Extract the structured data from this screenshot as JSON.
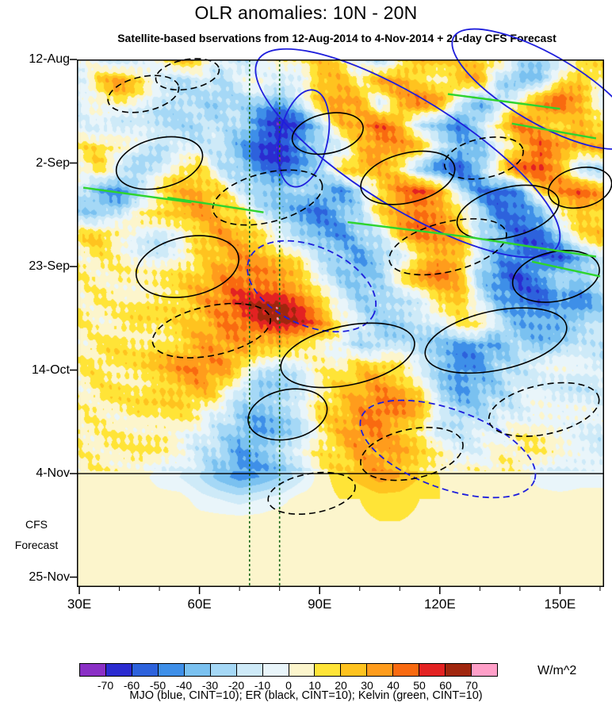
{
  "title": "OLR anomalies: 10N - 20N",
  "subtitle": "Satellite-based bservations from 12-Aug-2014 to 4-Nov-2014 + 21-day CFS Forecast",
  "units": "W/m^2",
  "legend": "MJO (blue, CINT=10); ER (black, CINT=10); Kelvin (green, CINT=10)",
  "forecast_label": {
    "line1": "CFS",
    "line2": "Forecast"
  },
  "axes": {
    "x": {
      "range": [
        29.4,
        161.0
      ],
      "minor_step": 10,
      "ticks": [
        {
          "lon": 30,
          "label": "30E"
        },
        {
          "lon": 60,
          "label": "60E"
        },
        {
          "lon": 90,
          "label": "90E"
        },
        {
          "lon": 120,
          "label": "120E"
        },
        {
          "lon": 150,
          "label": "150E"
        }
      ]
    },
    "y": {
      "range": [
        0,
        107
      ],
      "ticks": [
        {
          "day": 0,
          "label": "12-Aug"
        },
        {
          "day": 21,
          "label": "2-Sep"
        },
        {
          "day": 42,
          "label": "23-Sep"
        },
        {
          "day": 63,
          "label": "14-Oct"
        },
        {
          "day": 84,
          "label": "4-Nov"
        },
        {
          "day": 105,
          "label": "25-Nov"
        }
      ]
    }
  },
  "colorbar": {
    "levels": [
      -70,
      -60,
      -50,
      -40,
      -30,
      -20,
      -10,
      0,
      10,
      20,
      30,
      40,
      50,
      60,
      70
    ],
    "labels": [
      "-70",
      "-60",
      "-50",
      "-40",
      "-30",
      "-20",
      "-10",
      "0",
      "10",
      "20",
      "30",
      "40",
      "50",
      "60",
      "70"
    ],
    "colors": [
      "#8A2FC5",
      "#2B2BD0",
      "#2D62DC",
      "#3E8FE8",
      "#7AC1F0",
      "#A5D8F6",
      "#CEEAF8",
      "#E9F5FA",
      "#FCF5CC",
      "#FFE437",
      "#FFC31F",
      "#FF9C1C",
      "#F96A10",
      "#E32222",
      "#A0260E",
      "#FF9FC8"
    ]
  },
  "chart_data": {
    "type": "heatmap",
    "title": "OLR anomalies: 10N - 20N",
    "xlabel": "",
    "ylabel": "",
    "value_units": "W/m^2",
    "x_lons": [
      30,
      35,
      40,
      45,
      50,
      55,
      60,
      65,
      70,
      75,
      80,
      85,
      90,
      95,
      100,
      105,
      110,
      115,
      120,
      125,
      130,
      135,
      140,
      145,
      150,
      155,
      160
    ],
    "y_days": [
      0,
      4.46,
      8.92,
      13.38,
      17.83,
      22.29,
      26.75,
      31.21,
      35.67,
      40.13,
      44.58,
      49.04,
      53.5,
      57.96,
      62.42,
      66.88,
      71.33,
      75.79,
      80.25,
      84.71,
      89.17,
      93.63,
      98.08,
      102.54,
      107
    ],
    "values": [
      [
        -5,
        -10,
        -15,
        -10,
        5,
        25,
        15,
        -10,
        -15,
        -5,
        10,
        5,
        20,
        15,
        -10,
        -20,
        10,
        25,
        20,
        15,
        25,
        10,
        -15,
        -30,
        -20,
        5,
        15
      ],
      [
        -10,
        20,
        35,
        20,
        -10,
        -20,
        -15,
        -20,
        -10,
        0,
        -10,
        -5,
        30,
        25,
        10,
        30,
        35,
        20,
        10,
        30,
        25,
        -20,
        -40,
        -25,
        20,
        30,
        10
      ],
      [
        -15,
        5,
        10,
        -5,
        -20,
        -25,
        -20,
        -30,
        -20,
        -30,
        -45,
        -20,
        20,
        40,
        30,
        -10,
        25,
        40,
        30,
        -20,
        -35,
        -20,
        15,
        35,
        45,
        25,
        -10
      ],
      [
        -5,
        -15,
        -20,
        -10,
        -15,
        -20,
        -25,
        -15,
        -25,
        -50,
        -65,
        -55,
        -20,
        20,
        35,
        45,
        30,
        -15,
        -30,
        -45,
        -25,
        20,
        40,
        30,
        20,
        35,
        20
      ],
      [
        10,
        20,
        10,
        -10,
        -25,
        -15,
        -10,
        -20,
        -35,
        -60,
        -70,
        -45,
        -30,
        -10,
        20,
        40,
        35,
        25,
        -20,
        -40,
        -30,
        -10,
        25,
        45,
        30,
        20,
        30
      ],
      [
        5,
        15,
        -15,
        -25,
        -10,
        15,
        20,
        -15,
        -30,
        -45,
        -55,
        -40,
        -20,
        10,
        30,
        25,
        15,
        -25,
        -45,
        -55,
        -35,
        20,
        45,
        55,
        35,
        -15,
        -25
      ],
      [
        -20,
        -35,
        -45,
        -25,
        10,
        25,
        30,
        20,
        -10,
        -25,
        -35,
        -25,
        -35,
        -45,
        -25,
        20,
        40,
        50,
        30,
        -20,
        -45,
        -60,
        -40,
        15,
        35,
        45,
        30
      ],
      [
        -25,
        -30,
        -20,
        10,
        20,
        30,
        35,
        25,
        15,
        -15,
        -25,
        -40,
        -50,
        -35,
        -20,
        15,
        35,
        45,
        40,
        20,
        -25,
        -50,
        -55,
        -35,
        10,
        30,
        20
      ],
      [
        15,
        25,
        10,
        -10,
        -20,
        -10,
        20,
        35,
        30,
        20,
        -10,
        -30,
        -40,
        -45,
        -30,
        -15,
        25,
        40,
        35,
        25,
        -15,
        -35,
        -55,
        -60,
        -30,
        10,
        25
      ],
      [
        5,
        10,
        5,
        -5,
        -10,
        5,
        15,
        25,
        35,
        30,
        25,
        15,
        -15,
        -30,
        -40,
        -30,
        -15,
        20,
        35,
        30,
        -20,
        -40,
        -50,
        -45,
        -55,
        -30,
        -10
      ],
      [
        10,
        5,
        10,
        5,
        10,
        15,
        25,
        35,
        45,
        40,
        30,
        20,
        -10,
        -25,
        -35,
        -25,
        10,
        30,
        40,
        25,
        -25,
        -50,
        -60,
        -45,
        -25,
        -35,
        -20
      ],
      [
        5,
        10,
        5,
        10,
        15,
        20,
        30,
        40,
        50,
        60,
        65,
        50,
        30,
        -10,
        -25,
        -30,
        -20,
        -10,
        20,
        30,
        -15,
        -35,
        -50,
        -55,
        -35,
        -45,
        -30
      ],
      [
        10,
        5,
        10,
        15,
        10,
        15,
        25,
        35,
        45,
        55,
        60,
        55,
        35,
        15,
        -15,
        -25,
        -30,
        -20,
        -15,
        10,
        20,
        -20,
        -35,
        -40,
        -45,
        -30,
        -20
      ],
      [
        5,
        10,
        15,
        10,
        15,
        20,
        30,
        35,
        30,
        25,
        30,
        20,
        10,
        -10,
        -20,
        -25,
        -15,
        -20,
        -30,
        -40,
        -45,
        -35,
        -25,
        -30,
        -20,
        -10,
        -15
      ],
      [
        10,
        15,
        10,
        15,
        25,
        35,
        40,
        35,
        25,
        -10,
        -20,
        -15,
        5,
        10,
        20,
        25,
        15,
        -15,
        -35,
        -50,
        -40,
        -25,
        -15,
        -10,
        -5,
        -10,
        -15
      ],
      [
        5,
        10,
        15,
        10,
        20,
        25,
        30,
        20,
        -15,
        -30,
        -25,
        -15,
        10,
        20,
        30,
        35,
        30,
        20,
        -20,
        -40,
        -35,
        -25,
        -15,
        -5,
        -10,
        -15,
        -10
      ],
      [
        5,
        10,
        5,
        15,
        10,
        15,
        10,
        -10,
        -25,
        -35,
        -30,
        -15,
        15,
        25,
        35,
        45,
        40,
        25,
        -15,
        -30,
        -25,
        -15,
        -10,
        -5,
        -10,
        -5,
        -10
      ],
      [
        10,
        5,
        10,
        5,
        10,
        5,
        -10,
        -20,
        -35,
        -40,
        -30,
        -20,
        10,
        25,
        40,
        35,
        25,
        15,
        -10,
        -15,
        -10,
        -5,
        5,
        10,
        5,
        -5,
        -10
      ],
      [
        5,
        10,
        5,
        10,
        5,
        -5,
        -15,
        -25,
        -40,
        -35,
        -25,
        -10,
        10,
        20,
        30,
        35,
        30,
        15,
        5,
        -10,
        -5,
        5,
        10,
        5,
        -5,
        -10,
        -15
      ],
      [
        5,
        5,
        10,
        5,
        -5,
        -10,
        -20,
        -35,
        -45,
        -40,
        -30,
        -15,
        5,
        15,
        25,
        35,
        30,
        20,
        10,
        5,
        10,
        5,
        5,
        -5,
        -10,
        -5,
        -5
      ],
      [
        5,
        5,
        5,
        5,
        5,
        5,
        -5,
        -10,
        -15,
        -10,
        -5,
        5,
        5,
        10,
        10,
        15,
        15,
        10,
        10,
        5,
        5,
        5,
        5,
        5,
        5,
        5,
        5
      ],
      [
        8,
        8,
        8,
        8,
        8,
        8,
        5,
        5,
        5,
        5,
        8,
        8,
        8,
        8,
        8,
        10,
        10,
        8,
        8,
        8,
        8,
        8,
        8,
        8,
        8,
        8,
        8
      ],
      [
        8,
        8,
        8,
        8,
        8,
        8,
        8,
        8,
        8,
        8,
        8,
        8,
        8,
        8,
        8,
        8,
        8,
        8,
        8,
        8,
        8,
        8,
        8,
        8,
        8,
        8,
        8
      ],
      [
        8,
        8,
        8,
        8,
        8,
        8,
        8,
        8,
        8,
        8,
        8,
        8,
        8,
        8,
        8,
        8,
        8,
        8,
        8,
        8,
        8,
        8,
        8,
        8,
        8,
        8,
        8
      ],
      [
        8,
        8,
        8,
        8,
        8,
        8,
        8,
        8,
        8,
        8,
        8,
        8,
        8,
        8,
        8,
        8,
        8,
        8,
        8,
        8,
        8,
        8,
        8,
        8,
        8,
        8,
        8
      ]
    ],
    "overlays": {
      "contour_colors": {
        "mjo": "#1E1EDC",
        "er": "#000000",
        "kelvin": "#2ED42E"
      },
      "mjo_ellipses": [
        {
          "lon": 112,
          "day": 19,
          "rx_deg": 44,
          "ry_days": 11,
          "angle": 32,
          "style": "solid"
        },
        {
          "lon": 86,
          "day": 16,
          "rx_deg": 6,
          "ry_days": 10,
          "angle": 12,
          "style": "solid"
        },
        {
          "lon": 146,
          "day": 6,
          "rx_deg": 26,
          "ry_days": 7,
          "angle": 30,
          "style": "solid"
        },
        {
          "lon": 88,
          "day": 46,
          "rx_deg": 17,
          "ry_days": 8,
          "angle": 24,
          "style": "dashed"
        },
        {
          "lon": 122,
          "day": 79,
          "rx_deg": 23,
          "ry_days": 8,
          "angle": 20,
          "style": "dashed"
        }
      ],
      "er_ellipses": [
        {
          "lon": 46,
          "day": 7,
          "rx_deg": 9,
          "ry_days": 3.5,
          "angle": -12,
          "style": "dashed"
        },
        {
          "lon": 57,
          "day": 3,
          "rx_deg": 8,
          "ry_days": 3,
          "angle": -10,
          "style": "dashed"
        },
        {
          "lon": 50,
          "day": 21,
          "rx_deg": 11,
          "ry_days": 5,
          "angle": -14,
          "style": "solid"
        },
        {
          "lon": 92,
          "day": 15,
          "rx_deg": 9,
          "ry_days": 4,
          "angle": -12,
          "style": "solid"
        },
        {
          "lon": 77,
          "day": 28,
          "rx_deg": 14,
          "ry_days": 5,
          "angle": -14,
          "style": "dashed"
        },
        {
          "lon": 112,
          "day": 24,
          "rx_deg": 12,
          "ry_days": 5,
          "angle": -14,
          "style": "solid"
        },
        {
          "lon": 131,
          "day": 20,
          "rx_deg": 10,
          "ry_days": 4,
          "angle": -12,
          "style": "dashed"
        },
        {
          "lon": 137,
          "day": 31,
          "rx_deg": 13,
          "ry_days": 5,
          "angle": -14,
          "style": "solid"
        },
        {
          "lon": 122,
          "day": 38,
          "rx_deg": 15,
          "ry_days": 5,
          "angle": -14,
          "style": "dashed"
        },
        {
          "lon": 149,
          "day": 44,
          "rx_deg": 11,
          "ry_days": 5,
          "angle": -12,
          "style": "solid"
        },
        {
          "lon": 57,
          "day": 42,
          "rx_deg": 13,
          "ry_days": 6,
          "angle": -12,
          "style": "solid"
        },
        {
          "lon": 63,
          "day": 55,
          "rx_deg": 15,
          "ry_days": 5,
          "angle": -12,
          "style": "dashed"
        },
        {
          "lon": 97,
          "day": 60,
          "rx_deg": 17,
          "ry_days": 6,
          "angle": -12,
          "style": "solid"
        },
        {
          "lon": 134,
          "day": 57,
          "rx_deg": 18,
          "ry_days": 6,
          "angle": -12,
          "style": "solid"
        },
        {
          "lon": 146,
          "day": 71,
          "rx_deg": 14,
          "ry_days": 5,
          "angle": -12,
          "style": "dashed"
        },
        {
          "lon": 113,
          "day": 80,
          "rx_deg": 13,
          "ry_days": 5,
          "angle": -12,
          "style": "dashed"
        },
        {
          "lon": 88,
          "day": 88,
          "rx_deg": 11,
          "ry_days": 4,
          "angle": -10,
          "style": "dashed"
        },
        {
          "lon": 82,
          "day": 72,
          "rx_deg": 10,
          "ry_days": 5,
          "angle": -12,
          "style": "solid"
        },
        {
          "lon": 155,
          "day": 26,
          "rx_deg": 8,
          "ry_days": 4,
          "angle": -12,
          "style": "solid"
        }
      ],
      "kelvin_lines": [
        {
          "lon1": 31,
          "day1": 26,
          "lon2": 58,
          "day2": 29
        },
        {
          "lon1": 52,
          "day1": 28,
          "lon2": 76,
          "day2": 31
        },
        {
          "lon1": 122,
          "day1": 7,
          "lon2": 150,
          "day2": 10
        },
        {
          "lon1": 97,
          "day1": 33,
          "lon2": 127,
          "day2": 36
        },
        {
          "lon1": 127,
          "day1": 36,
          "lon2": 159,
          "day2": 40
        },
        {
          "lon1": 138,
          "day1": 13,
          "lon2": 159,
          "day2": 16
        },
        {
          "lon1": 143,
          "day1": 41,
          "lon2": 160,
          "day2": 44
        }
      ],
      "vertical_lines": {
        "lons": [
          72.5,
          80
        ],
        "color": "#186818",
        "style": "dashed"
      },
      "forecast_start_line": {
        "day": 84,
        "color": "#000000"
      }
    }
  }
}
